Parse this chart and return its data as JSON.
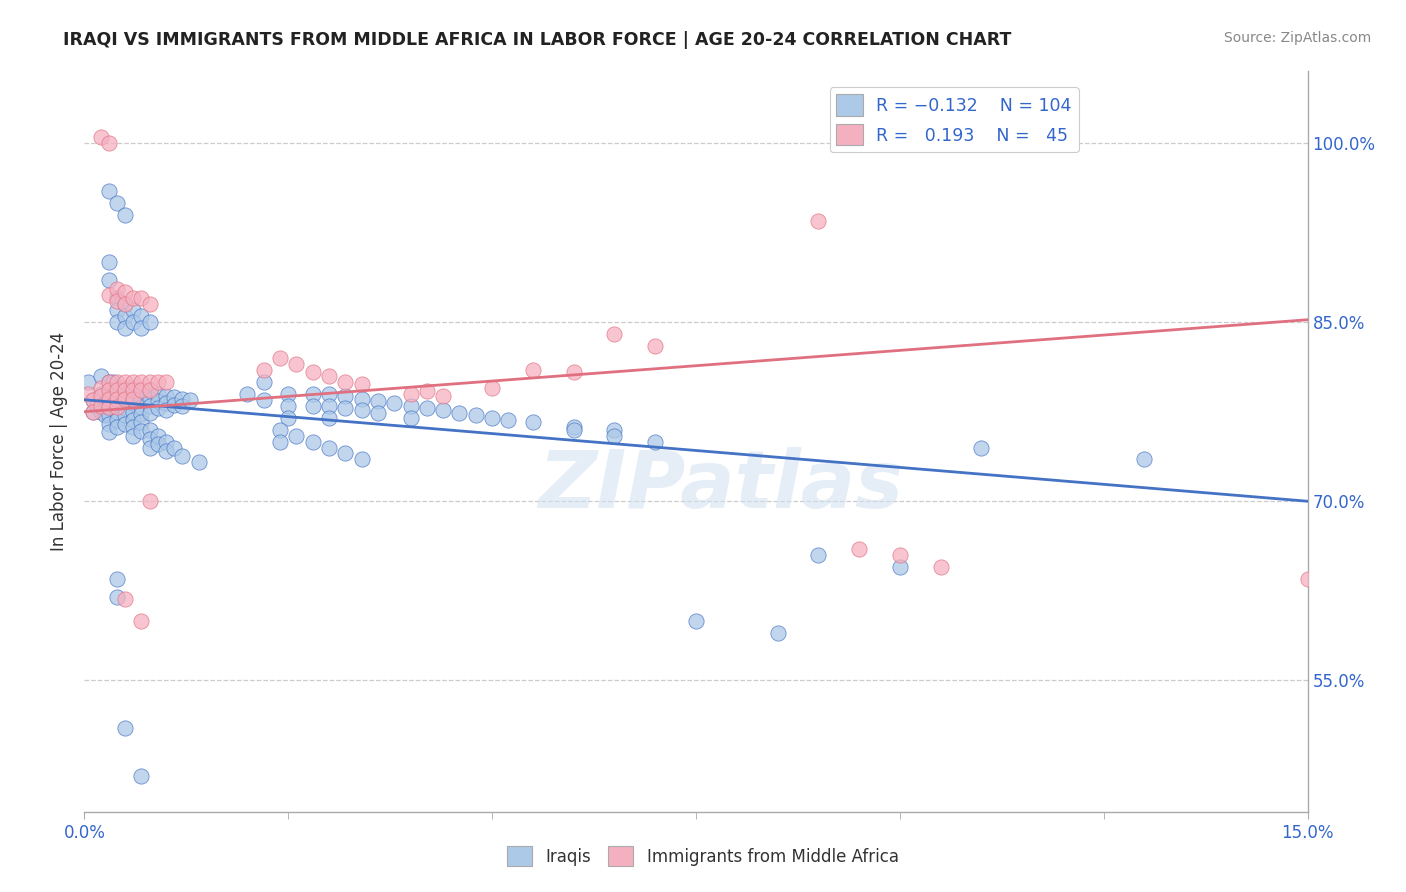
{
  "title": "IRAQI VS IMMIGRANTS FROM MIDDLE AFRICA IN LABOR FORCE | AGE 20-24 CORRELATION CHART",
  "source": "Source: ZipAtlas.com",
  "ylabel": "In Labor Force | Age 20-24",
  "ytick_labels": [
    "55.0%",
    "70.0%",
    "85.0%",
    "100.0%"
  ],
  "ytick_values": [
    0.55,
    0.7,
    0.85,
    1.0
  ],
  "xlim": [
    0.0,
    0.15
  ],
  "ylim": [
    0.44,
    1.06
  ],
  "color_blue": "#adc9e8",
  "color_pink": "#f5b0c0",
  "line_blue": "#4472c4",
  "line_pink": "#e07080",
  "watermark_text": "ZIPatlas",
  "background": "#ffffff",
  "blue_line": [
    0.0,
    0.785,
    0.15,
    0.7
  ],
  "pink_line": [
    0.0,
    0.775,
    0.15,
    0.852
  ],
  "blue_scatter": [
    [
      0.0005,
      0.8
    ],
    [
      0.001,
      0.785
    ],
    [
      0.001,
      0.775
    ],
    [
      0.0015,
      0.78
    ],
    [
      0.002,
      0.805
    ],
    [
      0.002,
      0.79
    ],
    [
      0.002,
      0.775
    ],
    [
      0.0025,
      0.772
    ],
    [
      0.003,
      0.8
    ],
    [
      0.003,
      0.79
    ],
    [
      0.003,
      0.785
    ],
    [
      0.003,
      0.778
    ],
    [
      0.003,
      0.772
    ],
    [
      0.003,
      0.765
    ],
    [
      0.003,
      0.758
    ],
    [
      0.0035,
      0.8
    ],
    [
      0.0035,
      0.79
    ],
    [
      0.0035,
      0.785
    ],
    [
      0.004,
      0.795
    ],
    [
      0.004,
      0.788
    ],
    [
      0.004,
      0.782
    ],
    [
      0.004,
      0.775
    ],
    [
      0.004,
      0.768
    ],
    [
      0.004,
      0.762
    ],
    [
      0.005,
      0.795
    ],
    [
      0.005,
      0.79
    ],
    [
      0.005,
      0.785
    ],
    [
      0.005,
      0.778
    ],
    [
      0.005,
      0.772
    ],
    [
      0.005,
      0.765
    ],
    [
      0.006,
      0.795
    ],
    [
      0.006,
      0.788
    ],
    [
      0.006,
      0.782
    ],
    [
      0.006,
      0.775
    ],
    [
      0.006,
      0.768
    ],
    [
      0.006,
      0.762
    ],
    [
      0.006,
      0.755
    ],
    [
      0.007,
      0.792
    ],
    [
      0.007,
      0.786
    ],
    [
      0.007,
      0.779
    ],
    [
      0.007,
      0.773
    ],
    [
      0.007,
      0.766
    ],
    [
      0.007,
      0.759
    ],
    [
      0.008,
      0.792
    ],
    [
      0.008,
      0.786
    ],
    [
      0.008,
      0.78
    ],
    [
      0.008,
      0.774
    ],
    [
      0.009,
      0.79
    ],
    [
      0.009,
      0.784
    ],
    [
      0.009,
      0.778
    ],
    [
      0.01,
      0.788
    ],
    [
      0.01,
      0.782
    ],
    [
      0.01,
      0.776
    ],
    [
      0.011,
      0.787
    ],
    [
      0.011,
      0.781
    ],
    [
      0.012,
      0.786
    ],
    [
      0.012,
      0.78
    ],
    [
      0.013,
      0.785
    ],
    [
      0.003,
      0.9
    ],
    [
      0.003,
      0.885
    ],
    [
      0.004,
      0.87
    ],
    [
      0.004,
      0.86
    ],
    [
      0.004,
      0.85
    ],
    [
      0.005,
      0.865
    ],
    [
      0.005,
      0.855
    ],
    [
      0.005,
      0.845
    ],
    [
      0.006,
      0.86
    ],
    [
      0.006,
      0.85
    ],
    [
      0.007,
      0.855
    ],
    [
      0.007,
      0.845
    ],
    [
      0.008,
      0.85
    ],
    [
      0.003,
      0.96
    ],
    [
      0.004,
      0.95
    ],
    [
      0.005,
      0.94
    ],
    [
      0.008,
      0.76
    ],
    [
      0.008,
      0.752
    ],
    [
      0.008,
      0.745
    ],
    [
      0.009,
      0.755
    ],
    [
      0.009,
      0.748
    ],
    [
      0.01,
      0.75
    ],
    [
      0.01,
      0.742
    ],
    [
      0.011,
      0.745
    ],
    [
      0.012,
      0.738
    ],
    [
      0.014,
      0.733
    ],
    [
      0.004,
      0.635
    ],
    [
      0.004,
      0.62
    ],
    [
      0.005,
      0.51
    ],
    [
      0.007,
      0.47
    ],
    [
      0.02,
      0.79
    ],
    [
      0.022,
      0.8
    ],
    [
      0.022,
      0.785
    ],
    [
      0.025,
      0.79
    ],
    [
      0.025,
      0.78
    ],
    [
      0.025,
      0.77
    ],
    [
      0.028,
      0.79
    ],
    [
      0.028,
      0.78
    ],
    [
      0.03,
      0.79
    ],
    [
      0.03,
      0.78
    ],
    [
      0.03,
      0.77
    ],
    [
      0.032,
      0.788
    ],
    [
      0.032,
      0.778
    ],
    [
      0.034,
      0.786
    ],
    [
      0.034,
      0.776
    ],
    [
      0.036,
      0.784
    ],
    [
      0.036,
      0.774
    ],
    [
      0.038,
      0.782
    ],
    [
      0.04,
      0.78
    ],
    [
      0.04,
      0.77
    ],
    [
      0.042,
      0.778
    ],
    [
      0.044,
      0.776
    ],
    [
      0.046,
      0.774
    ],
    [
      0.048,
      0.772
    ],
    [
      0.05,
      0.77
    ],
    [
      0.052,
      0.768
    ],
    [
      0.055,
      0.766
    ],
    [
      0.06,
      0.762
    ],
    [
      0.065,
      0.76
    ],
    [
      0.024,
      0.76
    ],
    [
      0.024,
      0.75
    ],
    [
      0.026,
      0.755
    ],
    [
      0.028,
      0.75
    ],
    [
      0.03,
      0.745
    ],
    [
      0.032,
      0.74
    ],
    [
      0.034,
      0.735
    ],
    [
      0.06,
      0.76
    ],
    [
      0.065,
      0.755
    ],
    [
      0.07,
      0.75
    ],
    [
      0.075,
      0.6
    ],
    [
      0.085,
      0.59
    ],
    [
      0.09,
      0.655
    ],
    [
      0.1,
      0.645
    ],
    [
      0.11,
      0.745
    ],
    [
      0.13,
      0.735
    ]
  ],
  "pink_scatter": [
    [
      0.0005,
      0.79
    ],
    [
      0.001,
      0.785
    ],
    [
      0.001,
      0.775
    ],
    [
      0.002,
      0.795
    ],
    [
      0.002,
      0.788
    ],
    [
      0.002,
      0.78
    ],
    [
      0.003,
      0.8
    ],
    [
      0.003,
      0.793
    ],
    [
      0.003,
      0.786
    ],
    [
      0.003,
      0.779
    ],
    [
      0.004,
      0.8
    ],
    [
      0.004,
      0.793
    ],
    [
      0.004,
      0.786
    ],
    [
      0.004,
      0.779
    ],
    [
      0.005,
      0.8
    ],
    [
      0.005,
      0.793
    ],
    [
      0.005,
      0.786
    ],
    [
      0.006,
      0.8
    ],
    [
      0.006,
      0.793
    ],
    [
      0.006,
      0.786
    ],
    [
      0.007,
      0.8
    ],
    [
      0.007,
      0.793
    ],
    [
      0.008,
      0.8
    ],
    [
      0.008,
      0.793
    ],
    [
      0.009,
      0.8
    ],
    [
      0.01,
      0.8
    ],
    [
      0.003,
      0.873
    ],
    [
      0.004,
      0.878
    ],
    [
      0.004,
      0.868
    ],
    [
      0.005,
      0.875
    ],
    [
      0.005,
      0.865
    ],
    [
      0.006,
      0.87
    ],
    [
      0.007,
      0.87
    ],
    [
      0.008,
      0.865
    ],
    [
      0.002,
      1.005
    ],
    [
      0.003,
      1.0
    ],
    [
      0.022,
      0.81
    ],
    [
      0.024,
      0.82
    ],
    [
      0.026,
      0.815
    ],
    [
      0.028,
      0.808
    ],
    [
      0.03,
      0.805
    ],
    [
      0.032,
      0.8
    ],
    [
      0.034,
      0.798
    ],
    [
      0.04,
      0.79
    ],
    [
      0.042,
      0.792
    ],
    [
      0.044,
      0.788
    ],
    [
      0.05,
      0.795
    ],
    [
      0.055,
      0.81
    ],
    [
      0.06,
      0.808
    ],
    [
      0.065,
      0.84
    ],
    [
      0.07,
      0.83
    ],
    [
      0.09,
      0.935
    ],
    [
      0.095,
      0.66
    ],
    [
      0.1,
      0.655
    ],
    [
      0.105,
      0.645
    ],
    [
      0.15,
      0.635
    ],
    [
      0.005,
      0.618
    ],
    [
      0.007,
      0.6
    ],
    [
      0.008,
      0.7
    ]
  ]
}
